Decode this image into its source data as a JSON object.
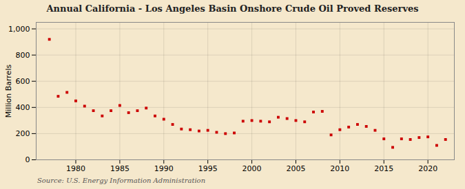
{
  "chart_data": {
    "type": "scatter",
    "title": "Annual California - Los Angeles Basin Onshore Crude Oil Proved Reserves",
    "ylabel": "Million Barrels",
    "source": "Source: U.S. Energy Information Administration",
    "x": [
      1977,
      1978,
      1979,
      1980,
      1981,
      1982,
      1983,
      1984,
      1985,
      1986,
      1987,
      1988,
      1989,
      1990,
      1991,
      1992,
      1993,
      1994,
      1995,
      1996,
      1997,
      1998,
      1999,
      2000,
      2001,
      2002,
      2003,
      2004,
      2005,
      2006,
      2007,
      2008,
      2009,
      2010,
      2011,
      2012,
      2013,
      2014,
      2015,
      2016,
      2017,
      2018,
      2019,
      2020,
      2021,
      2022
    ],
    "values": [
      920,
      485,
      515,
      450,
      410,
      375,
      335,
      375,
      415,
      360,
      375,
      395,
      335,
      310,
      270,
      235,
      230,
      220,
      225,
      210,
      200,
      205,
      295,
      300,
      295,
      290,
      325,
      315,
      300,
      290,
      365,
      370,
      190,
      230,
      250,
      270,
      255,
      225,
      160,
      95,
      160,
      155,
      170,
      175,
      110,
      155
    ],
    "color": "#cc0000",
    "marker": "square",
    "xlim": [
      1975.5,
      2023
    ],
    "xticks": [
      1980,
      1985,
      1990,
      1995,
      2000,
      2005,
      2010,
      2015,
      2020
    ],
    "ylim": [
      0,
      1050
    ],
    "yticks": [
      0,
      200,
      400,
      600,
      800,
      {
        "value": 1000,
        "label": "1,000"
      }
    ],
    "grid": true
  }
}
